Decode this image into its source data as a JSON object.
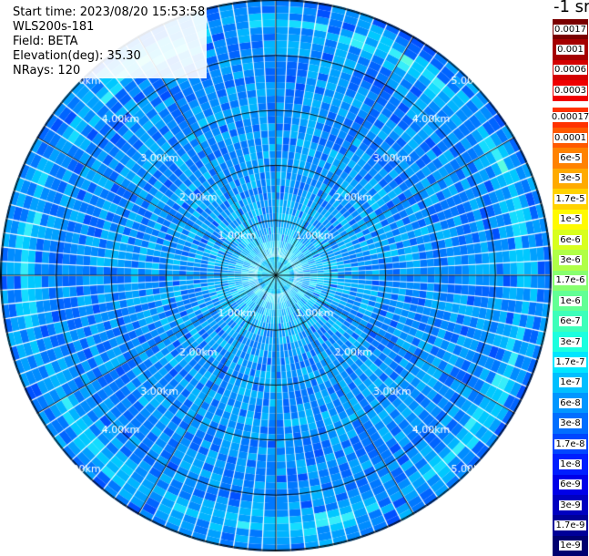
{
  "header": {
    "start_time": "Start time: 2023/08/20 15:53:58",
    "instrument": "WLS200s-181",
    "field": "Field: BETA",
    "elevation": "Elevation(deg): 35.30",
    "nrays": "NRays: 120"
  },
  "colorbar": {
    "unit": "-1 sr",
    "dark_group": [
      {
        "label": "0.0017",
        "color": "#7a0000"
      },
      {
        "label": "0.001",
        "color": "#a50000"
      },
      {
        "label": "0.0006",
        "color": "#d40000"
      },
      {
        "label": "0.0003",
        "color": "#f00000"
      }
    ],
    "main_group": [
      {
        "label": "0.00017",
        "color": "#ff3200"
      },
      {
        "label": "0.0001",
        "color": "#ff5a00"
      },
      {
        "label": "6e-5",
        "color": "#ff8200"
      },
      {
        "label": "3e-5",
        "color": "#ffaa00"
      },
      {
        "label": "1.7e-5",
        "color": "#ffd200"
      },
      {
        "label": "1e-5",
        "color": "#fffa00"
      },
      {
        "label": "6e-6",
        "color": "#d8ff1e"
      },
      {
        "label": "3e-6",
        "color": "#b0ff47"
      },
      {
        "label": "1.7e-6",
        "color": "#88ff6f"
      },
      {
        "label": "1e-6",
        "color": "#62ff95"
      },
      {
        "label": "6e-7",
        "color": "#3dffba"
      },
      {
        "label": "3e-7",
        "color": "#1cffdf"
      },
      {
        "label": "1.7e-7",
        "color": "#00e6ff"
      },
      {
        "label": "1e-7",
        "color": "#00bfff"
      },
      {
        "label": "6e-8",
        "color": "#0096ff"
      },
      {
        "label": "3e-8",
        "color": "#006eff"
      },
      {
        "label": "1.7e-8",
        "color": "#0046ff"
      },
      {
        "label": "1e-8",
        "color": "#001eff"
      },
      {
        "label": "6e-9",
        "color": "#0000e8"
      },
      {
        "label": "3e-9",
        "color": "#0000c0"
      },
      {
        "label": "1.7e-9",
        "color": "#000098"
      },
      {
        "label": "1e-9",
        "color": "#000070"
      }
    ]
  },
  "range_rings": {
    "values_km": [
      1,
      2,
      3,
      4,
      5
    ],
    "labels": [
      "1.00km",
      "2.00km",
      "3.00km",
      "4.00km",
      "5.00km"
    ]
  },
  "scan": {
    "field_name": "BETA",
    "elevation_deg": 35.3,
    "n_rays": 120,
    "max_range_km": 5.0,
    "gate_count": 40
  }
}
